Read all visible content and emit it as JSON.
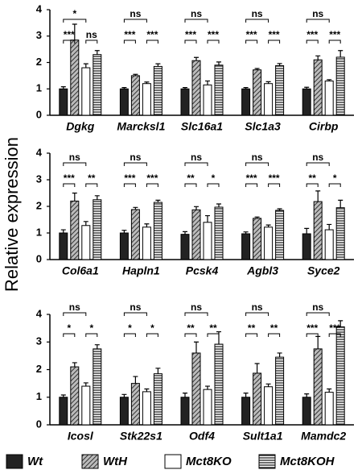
{
  "chart_data": [
    {
      "type": "bar",
      "categories": [
        "Dgkg",
        "Marcksl1",
        "Slc16a1",
        "Slc1a3",
        "Cirbp"
      ],
      "ylim": [
        0,
        4
      ],
      "yticks": [
        0,
        1,
        2,
        3,
        4
      ],
      "series": [
        {
          "name": "Wt",
          "color": "#222222",
          "pattern": "solid",
          "values": [
            1.0,
            1.0,
            1.0,
            1.0,
            1.0
          ],
          "errors": [
            0.08,
            0.05,
            0.05,
            0.05,
            0.06
          ]
        },
        {
          "name": "WtH",
          "color": "#555555",
          "pattern": "diagonal",
          "values": [
            2.85,
            1.5,
            2.07,
            1.72,
            2.1
          ],
          "errors": [
            0.6,
            0.05,
            0.12,
            0.05,
            0.15
          ]
        },
        {
          "name": "Mct8KO",
          "color": "#ffffff",
          "pattern": "solid",
          "values": [
            1.8,
            1.2,
            1.15,
            1.2,
            1.3
          ],
          "errors": [
            0.15,
            0.06,
            0.15,
            0.07,
            0.05
          ]
        },
        {
          "name": "Mct8KOH",
          "color": "#222222",
          "pattern": "horizontal",
          "values": [
            2.3,
            1.85,
            1.9,
            1.88,
            2.2
          ],
          "errors": [
            0.15,
            0.1,
            0.12,
            0.08,
            0.25
          ]
        }
      ],
      "brackets": [
        [
          "***",
          "ns",
          "*"
        ],
        [
          "***",
          "***",
          "ns"
        ],
        [
          "***",
          "***",
          "ns"
        ],
        [
          "***",
          "***",
          "ns"
        ],
        [
          "***",
          "***",
          "ns"
        ]
      ]
    },
    {
      "type": "bar",
      "categories": [
        "Col6a1",
        "Hapln1",
        "Pcsk4",
        "Agbl3",
        "Syce2"
      ],
      "ylabel": "Relative expression",
      "ylim": [
        0,
        4
      ],
      "yticks": [
        0,
        1,
        2,
        3,
        4
      ],
      "series": [
        {
          "name": "Wt",
          "color": "#222222",
          "pattern": "solid",
          "values": [
            1.0,
            1.0,
            0.95,
            0.97,
            0.97
          ],
          "errors": [
            0.12,
            0.1,
            0.1,
            0.07,
            0.2
          ]
        },
        {
          "name": "WtH",
          "color": "#555555",
          "pattern": "diagonal",
          "values": [
            2.2,
            1.88,
            1.87,
            1.55,
            2.18
          ],
          "errors": [
            0.3,
            0.08,
            0.12,
            0.05,
            0.4
          ]
        },
        {
          "name": "Mct8KO",
          "color": "#ffffff",
          "pattern": "solid",
          "values": [
            1.28,
            1.22,
            1.4,
            1.22,
            1.12
          ],
          "errors": [
            0.15,
            0.12,
            0.25,
            0.08,
            0.2
          ]
        },
        {
          "name": "Mct8KOH",
          "color": "#222222",
          "pattern": "horizontal",
          "values": [
            2.25,
            2.15,
            1.97,
            1.85,
            1.95
          ],
          "errors": [
            0.15,
            0.08,
            0.12,
            0.06,
            0.28
          ]
        }
      ],
      "brackets": [
        [
          "***",
          "**",
          "ns"
        ],
        [
          "***",
          "***",
          "ns"
        ],
        [
          "**",
          "*",
          "ns"
        ],
        [
          "***",
          "***",
          "ns"
        ],
        [
          "**",
          "*",
          "ns"
        ]
      ]
    },
    {
      "type": "bar",
      "categories": [
        "Icosl",
        "Stk22s1",
        "Odf4",
        "Sult1a1",
        "Mamdc2"
      ],
      "ylim": [
        0,
        4
      ],
      "yticks": [
        0,
        1,
        2,
        3,
        4
      ],
      "series": [
        {
          "name": "Wt",
          "color": "#222222",
          "pattern": "solid",
          "values": [
            1.0,
            1.0,
            1.0,
            1.0,
            1.0
          ],
          "errors": [
            0.08,
            0.1,
            0.15,
            0.15,
            0.12
          ]
        },
        {
          "name": "WtH",
          "color": "#555555",
          "pattern": "diagonal",
          "values": [
            2.1,
            1.5,
            2.6,
            1.87,
            2.75
          ],
          "errors": [
            0.15,
            0.25,
            0.4,
            0.35,
            0.45
          ]
        },
        {
          "name": "Mct8KO",
          "color": "#ffffff",
          "pattern": "solid",
          "values": [
            1.4,
            1.2,
            1.28,
            1.38,
            1.18
          ],
          "errors": [
            0.12,
            0.1,
            0.12,
            0.1,
            0.12
          ]
        },
        {
          "name": "Mct8KOH",
          "color": "#222222",
          "pattern": "horizontal",
          "values": [
            2.75,
            1.85,
            2.92,
            2.45,
            3.55
          ],
          "errors": [
            0.15,
            0.2,
            0.45,
            0.15,
            0.22
          ]
        }
      ],
      "brackets": [
        [
          "*",
          "*",
          "ns"
        ],
        [
          "*",
          "*",
          "ns"
        ],
        [
          "**",
          "**",
          "ns"
        ],
        [
          "**",
          "**",
          "ns"
        ],
        [
          "***",
          "***",
          "ns"
        ]
      ]
    }
  ]
}
